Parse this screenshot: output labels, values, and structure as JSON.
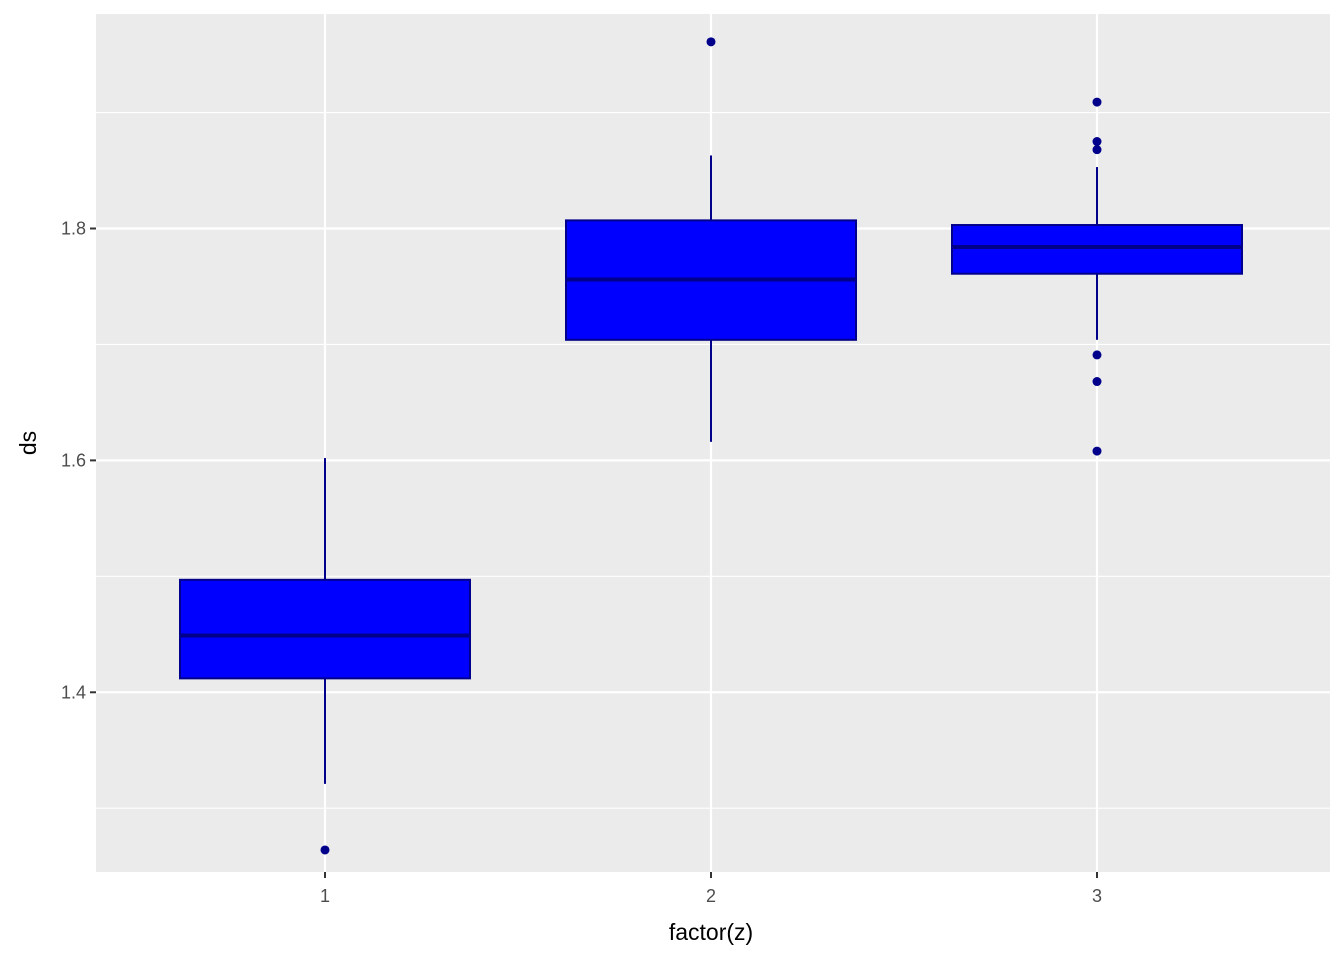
{
  "chart_data": {
    "type": "box",
    "xlabel": "factor(z)",
    "ylabel": "ds",
    "ylim": [
      1.245,
      1.985
    ],
    "y_ticks": [
      1.4,
      1.6,
      1.8
    ],
    "y_tick_labels": [
      "1.4",
      "1.6",
      "1.8"
    ],
    "y_minor_ticks": [
      1.3,
      1.5,
      1.7,
      1.9
    ],
    "categories": [
      "1",
      "2",
      "3"
    ],
    "grid": true,
    "legend": "none",
    "colors": {
      "panel_background": "#EBEBEB",
      "grid": "#FFFFFF",
      "box_fill": "#0000FF",
      "box_line": "#00008B",
      "outlier": "#00008B"
    },
    "boxes": [
      {
        "category": "1",
        "whisker_low": 1.321,
        "q1": 1.412,
        "median": 1.449,
        "q3": 1.497,
        "whisker_high": 1.602,
        "outliers": [
          1.264
        ]
      },
      {
        "category": "2",
        "whisker_low": 1.616,
        "q1": 1.704,
        "median": 1.756,
        "q3": 1.807,
        "whisker_high": 1.863,
        "outliers": [
          1.961
        ]
      },
      {
        "category": "3",
        "whisker_low": 1.704,
        "q1": 1.761,
        "median": 1.784,
        "q3": 1.803,
        "whisker_high": 1.853,
        "outliers": [
          1.909,
          1.875,
          1.868,
          1.691,
          1.668,
          1.608
        ]
      }
    ]
  }
}
